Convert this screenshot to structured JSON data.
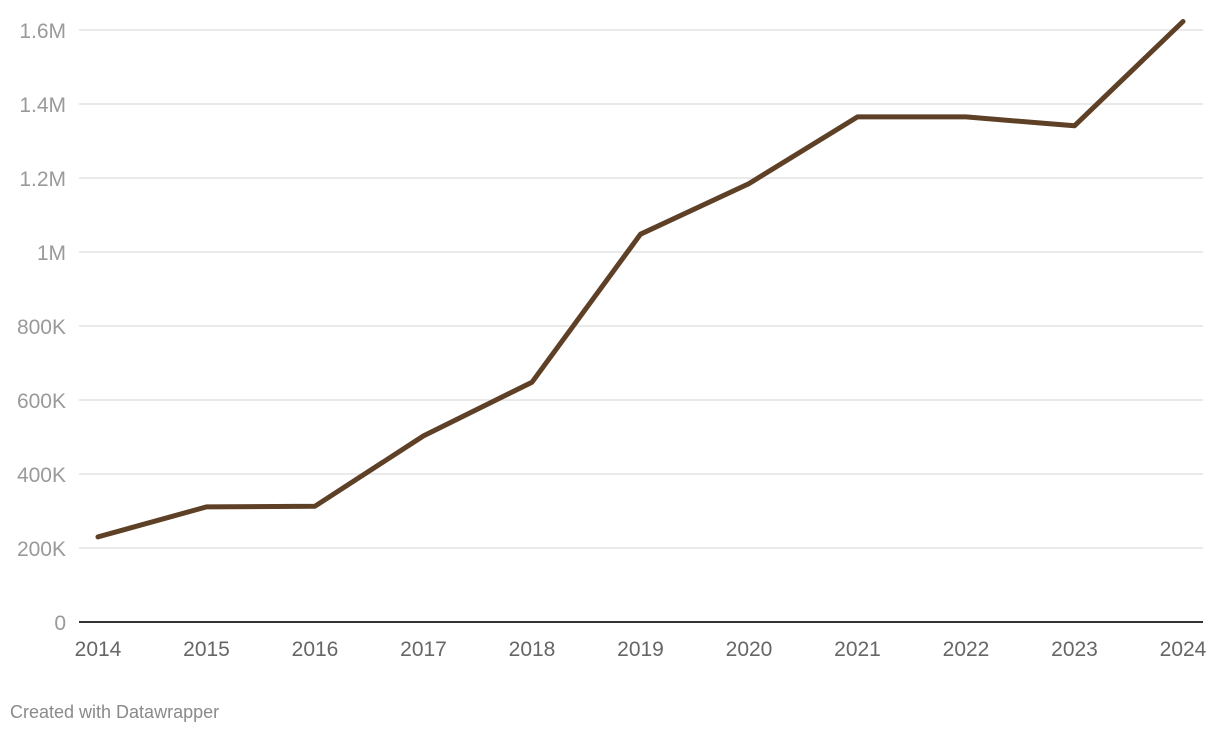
{
  "chart_data": {
    "type": "line",
    "title": "",
    "xlabel": "",
    "ylabel": "",
    "x": [
      "2014",
      "2015",
      "2016",
      "2017",
      "2018",
      "2019",
      "2020",
      "2021",
      "2022",
      "2023",
      "2024"
    ],
    "series": [
      {
        "values": [
          230000,
          311000,
          313000,
          503000,
          648000,
          1048000,
          1185000,
          1365000,
          1365000,
          1341000,
          1623000
        ],
        "color": "#5e4026"
      }
    ],
    "ylim": [
      0,
      1600000
    ],
    "y_ticks": [
      0,
      200000,
      400000,
      600000,
      800000,
      1000000,
      1200000,
      1400000,
      1600000
    ],
    "y_tick_labels": [
      "0",
      "200K",
      "400K",
      "600K",
      "800K",
      "1M",
      "1.2M",
      "1.4M",
      "1.6M"
    ],
    "grid": true,
    "colors": {
      "gridline": "#e3e3e3",
      "baseline": "#333333"
    }
  },
  "footer": {
    "credit": "Created with Datawrapper"
  }
}
